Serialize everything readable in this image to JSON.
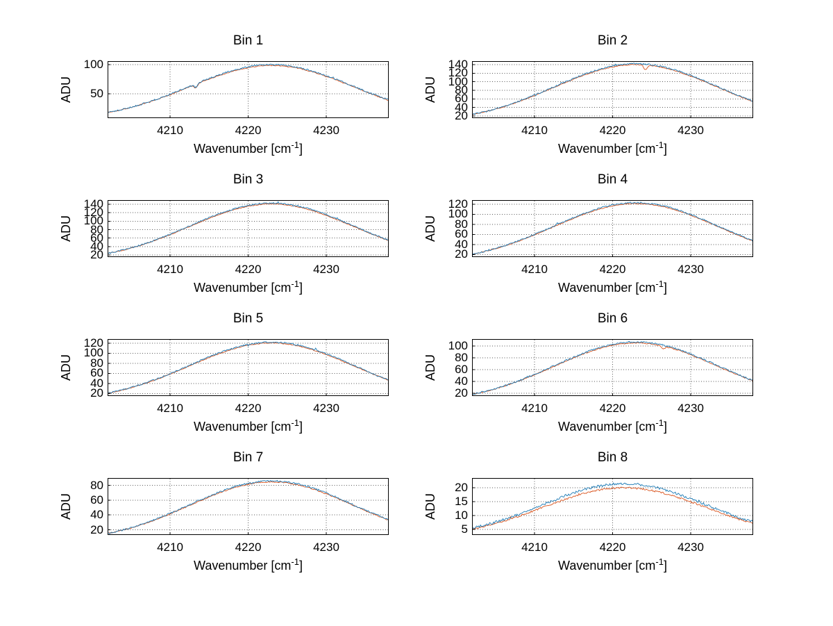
{
  "figure_title": "",
  "ylabel": "ADU",
  "xlabel_parts": {
    "prefix": "Wavenumber [cm",
    "sup": "-1",
    "suffix": "]"
  },
  "axes_style": {
    "background": "#ffffff",
    "axis_color": "#000000",
    "grid_color": "#555555",
    "grid_style": "dotted",
    "tick_direction": "in"
  },
  "series_colors": {
    "series_1": "#1c7ab5",
    "series_2": "#d9541e"
  },
  "chart_data": [
    {
      "type": "line",
      "title": "Bin 1",
      "xlabel": "Wavenumber [cm-1]",
      "ylabel": "ADU",
      "xlim": [
        4202,
        4238
      ],
      "ylim": [
        8,
        106
      ],
      "xticks": [
        4210,
        4220,
        4230
      ],
      "yticks": [
        50,
        100
      ],
      "grid": true,
      "legend": "none",
      "x": [
        4202,
        4205,
        4208,
        4211,
        4214,
        4217,
        4220,
        4223,
        4226,
        4229,
        4232,
        4235,
        4238
      ],
      "series": [
        {
          "name": "spectrum-blue",
          "color": "#1c7ab5",
          "values": [
            18,
            27,
            39,
            54,
            71,
            86,
            96,
            100,
            96,
            86,
            71,
            54,
            39
          ]
        },
        {
          "name": "spectrum-orange",
          "color": "#d9541e",
          "values": [
            17,
            26,
            38,
            53,
            70,
            85,
            95,
            98,
            95,
            85,
            70,
            53,
            38
          ]
        }
      ],
      "model": {
        "center": 4223,
        "sigma": 10.5,
        "baseline": 5,
        "amplitude": 95
      },
      "noise": {
        "a": 1.3,
        "b": 0.8
      },
      "series_b_ratio": 0.985,
      "spikes": [
        {
          "x": 4213.3,
          "depth": 6,
          "series": null
        }
      ]
    },
    {
      "type": "line",
      "title": "Bin 2",
      "xlabel": "Wavenumber [cm-1]",
      "ylabel": "ADU",
      "xlim": [
        4202,
        4238
      ],
      "ylim": [
        15,
        148
      ],
      "xticks": [
        4210,
        4220,
        4230
      ],
      "yticks": [
        20,
        40,
        60,
        80,
        100,
        120,
        140
      ],
      "grid": true,
      "legend": "none",
      "x": [
        4202,
        4205,
        4208,
        4211,
        4214,
        4217,
        4220,
        4223,
        4226,
        4229,
        4232,
        4235,
        4238
      ],
      "series": [
        {
          "name": "spectrum-blue",
          "color": "#1c7ab5",
          "values": [
            24,
            37,
            54,
            76,
            100,
            121,
            136,
            142,
            136,
            121,
            100,
            76,
            54
          ]
        },
        {
          "name": "spectrum-orange",
          "color": "#d9541e",
          "values": [
            23,
            36,
            53,
            75,
            98,
            119,
            134,
            140,
            134,
            119,
            98,
            75,
            53
          ]
        }
      ],
      "model": {
        "center": 4223,
        "sigma": 10.5,
        "baseline": 5,
        "amplitude": 137
      },
      "noise": {
        "a": 1.6,
        "b": 0.9
      },
      "series_b_ratio": 0.985,
      "spikes": [
        {
          "x": 4224.2,
          "depth": 11,
          "series": 1
        }
      ]
    },
    {
      "type": "line",
      "title": "Bin 3",
      "xlabel": "Wavenumber [cm-1]",
      "ylabel": "ADU",
      "xlim": [
        4202,
        4238
      ],
      "ylim": [
        15,
        150
      ],
      "xticks": [
        4210,
        4220,
        4230
      ],
      "yticks": [
        20,
        40,
        60,
        80,
        100,
        120,
        140
      ],
      "grid": true,
      "legend": "none",
      "x": [
        4202,
        4205,
        4208,
        4211,
        4214,
        4217,
        4220,
        4223,
        4226,
        4229,
        4232,
        4235,
        4238
      ],
      "series": [
        {
          "name": "spectrum-blue",
          "color": "#1c7ab5",
          "values": [
            24,
            37,
            55,
            77,
            101,
            122,
            138,
            143,
            138,
            122,
            101,
            77,
            55
          ]
        },
        {
          "name": "spectrum-orange",
          "color": "#d9541e",
          "values": [
            23,
            36,
            54,
            76,
            99,
            120,
            136,
            141,
            136,
            120,
            99,
            76,
            54
          ]
        }
      ],
      "model": {
        "center": 4223,
        "sigma": 10.5,
        "baseline": 5,
        "amplitude": 138
      },
      "noise": {
        "a": 1.6,
        "b": 0.9
      },
      "series_b_ratio": 0.985
    },
    {
      "type": "line",
      "title": "Bin 4",
      "xlabel": "Wavenumber [cm-1]",
      "ylabel": "ADU",
      "xlim": [
        4202,
        4238
      ],
      "ylim": [
        15,
        128
      ],
      "xticks": [
        4210,
        4220,
        4230
      ],
      "yticks": [
        20,
        40,
        60,
        80,
        100,
        120
      ],
      "grid": true,
      "legend": "none",
      "x": [
        4202,
        4205,
        4208,
        4211,
        4214,
        4217,
        4220,
        4223,
        4226,
        4229,
        4232,
        4235,
        4238
      ],
      "series": [
        {
          "name": "spectrum-blue",
          "color": "#1c7ab5",
          "values": [
            21,
            32,
            47,
            66,
            87,
            105,
            118,
            123,
            118,
            105,
            87,
            66,
            47
          ]
        },
        {
          "name": "spectrum-orange",
          "color": "#d9541e",
          "values": [
            20,
            31,
            46,
            65,
            85,
            103,
            116,
            121,
            116,
            103,
            85,
            65,
            46
          ]
        }
      ],
      "model": {
        "center": 4223,
        "sigma": 10.5,
        "baseline": 5,
        "amplitude": 118
      },
      "noise": {
        "a": 1.4,
        "b": 0.8
      },
      "series_b_ratio": 0.985
    },
    {
      "type": "line",
      "title": "Bin 5",
      "xlabel": "Wavenumber [cm-1]",
      "ylabel": "ADU",
      "xlim": [
        4202,
        4238
      ],
      "ylim": [
        15,
        128
      ],
      "xticks": [
        4210,
        4220,
        4230
      ],
      "yticks": [
        20,
        40,
        60,
        80,
        100,
        120
      ],
      "grid": true,
      "legend": "none",
      "x": [
        4202,
        4205,
        4208,
        4211,
        4214,
        4217,
        4220,
        4223,
        4226,
        4229,
        4232,
        4235,
        4238
      ],
      "series": [
        {
          "name": "spectrum-blue",
          "color": "#1c7ab5",
          "values": [
            21,
            32,
            47,
            66,
            86,
            104,
            117,
            122,
            117,
            104,
            86,
            66,
            47
          ]
        },
        {
          "name": "spectrum-orange",
          "color": "#d9541e",
          "values": [
            20,
            31,
            46,
            65,
            85,
            102,
            115,
            120,
            115,
            102,
            85,
            65,
            46
          ]
        }
      ],
      "model": {
        "center": 4223,
        "sigma": 10.5,
        "baseline": 5,
        "amplitude": 117
      },
      "noise": {
        "a": 1.4,
        "b": 0.8
      },
      "series_b_ratio": 0.985
    },
    {
      "type": "line",
      "title": "Bin 6",
      "xlabel": "Wavenumber [cm-1]",
      "ylabel": "ADU",
      "xlim": [
        4202,
        4238
      ],
      "ylim": [
        15,
        112
      ],
      "xticks": [
        4210,
        4220,
        4230
      ],
      "yticks": [
        20,
        40,
        60,
        80,
        100
      ],
      "grid": true,
      "legend": "none",
      "x": [
        4202,
        4205,
        4208,
        4211,
        4214,
        4217,
        4220,
        4223,
        4226,
        4229,
        4232,
        4235,
        4238
      ],
      "series": [
        {
          "name": "spectrum-blue",
          "color": "#1c7ab5",
          "values": [
            18,
            28,
            41,
            58,
            75,
            91,
            103,
            107,
            103,
            91,
            75,
            58,
            41
          ]
        },
        {
          "name": "spectrum-orange",
          "color": "#d9541e",
          "values": [
            17,
            27,
            40,
            57,
            74,
            90,
            101,
            105,
            101,
            90,
            74,
            57,
            40
          ]
        }
      ],
      "model": {
        "center": 4223,
        "sigma": 10.5,
        "baseline": 4,
        "amplitude": 103
      },
      "noise": {
        "a": 1.3,
        "b": 0.8
      },
      "series_b_ratio": 0.985,
      "spikes": [
        {
          "x": 4226.5,
          "depth": 5,
          "series": 1
        }
      ]
    },
    {
      "type": "line",
      "title": "Bin 7",
      "xlabel": "Wavenumber [cm-1]",
      "ylabel": "ADU",
      "xlim": [
        4202,
        4238
      ],
      "ylim": [
        13,
        90
      ],
      "xticks": [
        4210,
        4220,
        4230
      ],
      "yticks": [
        20,
        40,
        60,
        80
      ],
      "grid": true,
      "legend": "none",
      "x": [
        4202,
        4205,
        4208,
        4211,
        4214,
        4217,
        4220,
        4223,
        4226,
        4229,
        4232,
        4235,
        4238
      ],
      "series": [
        {
          "name": "spectrum-blue",
          "color": "#1c7ab5",
          "values": [
            15,
            23,
            34,
            47,
            61,
            74,
            83,
            86,
            83,
            74,
            61,
            47,
            34
          ]
        },
        {
          "name": "spectrum-orange",
          "color": "#d9541e",
          "values": [
            15,
            22,
            33,
            46,
            60,
            73,
            82,
            85,
            82,
            73,
            60,
            46,
            33
          ]
        }
      ],
      "model": {
        "center": 4223,
        "sigma": 10.5,
        "baseline": 4,
        "amplitude": 82
      },
      "noise": {
        "a": 1.1,
        "b": 0.7
      },
      "series_b_ratio": 0.985
    },
    {
      "type": "line",
      "title": "Bin 8",
      "xlabel": "Wavenumber [cm-1]",
      "ylabel": "ADU",
      "xlim": [
        4202,
        4238
      ],
      "ylim": [
        3,
        23.5
      ],
      "xticks": [
        4210,
        4220,
        4230
      ],
      "yticks": [
        5,
        10,
        15,
        20
      ],
      "grid": true,
      "legend": "none",
      "x": [
        4202,
        4205,
        4208,
        4211,
        4214,
        4217,
        4220,
        4223,
        4226,
        4229,
        4232,
        4235,
        4238
      ],
      "series": [
        {
          "name": "spectrum-blue",
          "color": "#1c7ab5",
          "values": [
            4.6,
            6.5,
            9,
            12.1,
            15.5,
            18.6,
            20.7,
            21.5,
            20.7,
            18.6,
            15.5,
            12.1,
            9
          ]
        },
        {
          "name": "spectrum-orange",
          "color": "#d9541e",
          "values": [
            4.3,
            6,
            8.4,
            11.3,
            14.4,
            17.3,
            19.3,
            20,
            19.3,
            17.3,
            14.4,
            11.3,
            8.4
          ]
        }
      ],
      "model": {
        "center": 4221.5,
        "sigma": 10.5,
        "baseline": 2,
        "amplitude": 19.5
      },
      "noise": {
        "a": 0.45,
        "b": 0.3
      },
      "series_b_ratio": 0.93
    }
  ]
}
